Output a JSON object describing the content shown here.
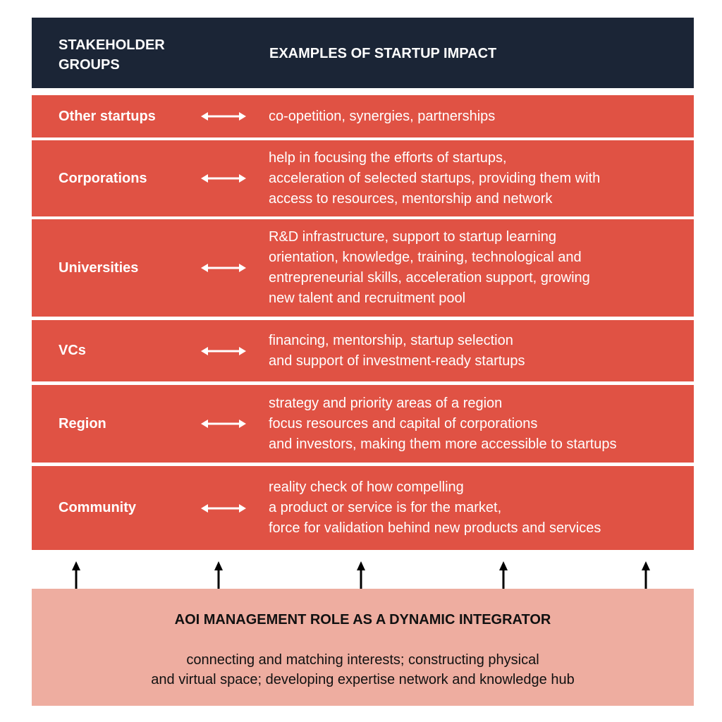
{
  "header": {
    "col1_line1": "STAKEHOLDER",
    "col1_line2": "GROUPS",
    "col2": "EXAMPLES OF STARTUP IMPACT"
  },
  "rows": [
    {
      "group": "Other startups",
      "lines": [
        "co-opetition, synergies, partnerships"
      ]
    },
    {
      "group": "Corporations",
      "lines": [
        "help in focusing the efforts of startups,",
        "acceleration of selected startups, providing them with",
        "access to resources, mentorship and network"
      ]
    },
    {
      "group": "Universities",
      "lines": [
        "R&D infrastructure, support to startup learning",
        "orientation, knowledge, training, technological and",
        "entrepreneurial skills, acceleration support, growing",
        "new talent and recruitment pool"
      ]
    },
    {
      "group": "VCs",
      "lines": [
        "financing, mentorship, startup selection",
        "and support of investment-ready startups"
      ]
    },
    {
      "group": "Region",
      "lines": [
        "strategy and priority areas of a region",
        "focus resources and capital of corporations",
        "and investors, making them more accessible to startups"
      ]
    },
    {
      "group": "Community",
      "lines": [
        "reality check of how compelling",
        "a product or service is for the market,",
        "force for validation behind new products and services"
      ]
    }
  ],
  "integrator": {
    "title": "AOI MANAGEMENT ROLE AS A DYNAMIC INTEGRATOR",
    "line1": "connecting and matching interests; constructing physical",
    "line2": "and virtual space; developing expertise network and knowledge hub"
  },
  "colors": {
    "header_bg": "#1b2536",
    "row_bg": "#e05244",
    "integrator_bg": "#eeada0"
  }
}
